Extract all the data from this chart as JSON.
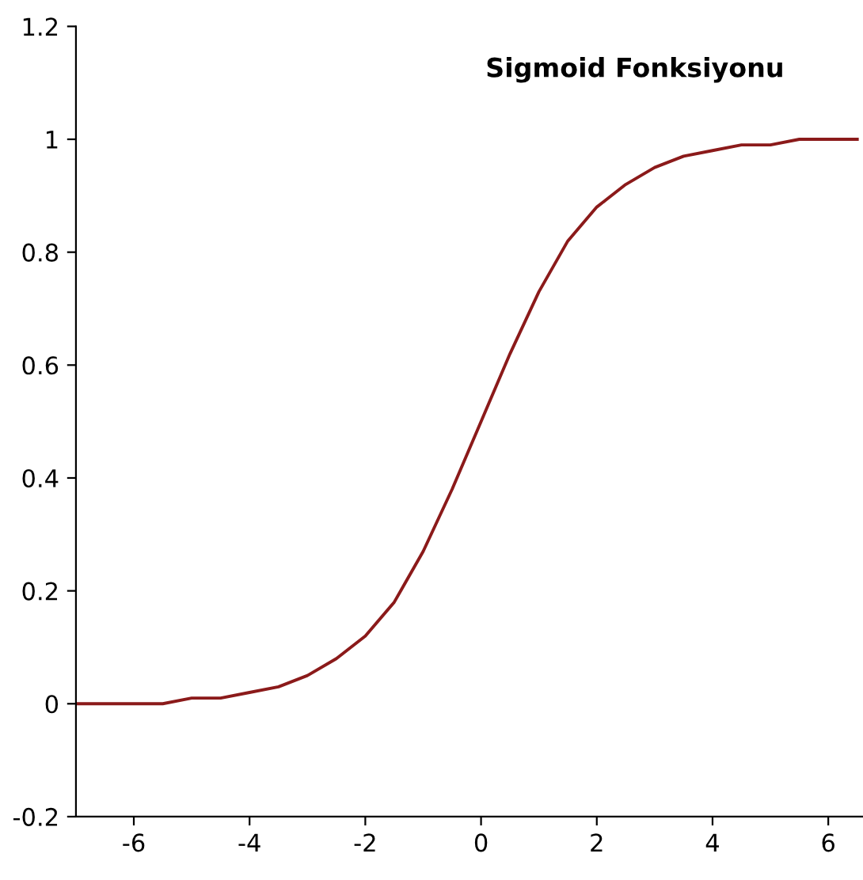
{
  "chart_data": {
    "type": "line",
    "title": "Sigmoid Fonksiyonu",
    "x": [
      -7,
      -6.5,
      -6,
      -5.5,
      -5,
      -4.5,
      -4,
      -3.5,
      -3,
      -2.5,
      -2,
      -1.5,
      -1,
      -0.5,
      0,
      0.5,
      1,
      1.5,
      2,
      2.5,
      3,
      3.5,
      4,
      4.5,
      5,
      5.5,
      6,
      6.5
    ],
    "series": [
      {
        "color": "#8b1a1a",
        "values": [
          0.0,
          0.0,
          0.0,
          0.0,
          0.01,
          0.01,
          0.02,
          0.03,
          0.05,
          0.08,
          0.12,
          0.18,
          0.27,
          0.38,
          0.5,
          0.62,
          0.73,
          0.82,
          0.88,
          0.92,
          0.95,
          0.97,
          0.98,
          0.99,
          0.99,
          1.0,
          1.0,
          1.0
        ]
      }
    ],
    "xlim": [
      -7,
      6.6
    ],
    "ylim": [
      -0.2,
      1.2
    ],
    "xticks": [
      -6,
      -4,
      -2,
      0,
      2,
      4,
      6
    ],
    "yticks": [
      -0.2,
      0,
      0.2,
      0.4,
      0.6,
      0.8,
      1,
      1.2
    ],
    "grid": false,
    "legend": false,
    "marker": "none",
    "line_style": "solid"
  }
}
